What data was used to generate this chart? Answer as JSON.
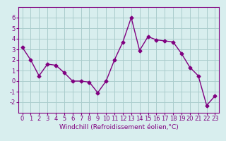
{
  "x": [
    0,
    1,
    2,
    3,
    4,
    5,
    6,
    7,
    8,
    9,
    10,
    11,
    12,
    13,
    14,
    15,
    16,
    17,
    18,
    19,
    20,
    21,
    22,
    23
  ],
  "y": [
    3.2,
    2.0,
    0.5,
    1.6,
    1.5,
    0.8,
    0.0,
    0.0,
    -0.1,
    -1.1,
    0.0,
    2.0,
    3.7,
    6.0,
    2.9,
    4.2,
    3.9,
    3.8,
    3.7,
    2.6,
    1.3,
    0.5,
    -2.3,
    -1.4
  ],
  "xlim": [
    -0.5,
    23.5
  ],
  "ylim": [
    -3,
    7
  ],
  "yticks": [
    -2,
    -1,
    0,
    1,
    2,
    3,
    4,
    5,
    6
  ],
  "xticks": [
    0,
    1,
    2,
    3,
    4,
    5,
    6,
    7,
    8,
    9,
    10,
    11,
    12,
    13,
    14,
    15,
    16,
    17,
    18,
    19,
    20,
    21,
    22,
    23
  ],
  "line_color": "#800080",
  "marker": "D",
  "marker_size": 2.5,
  "line_width": 1.0,
  "bg_color": "#d8eeee",
  "grid_color": "#aacccc",
  "xlabel": "Windchill (Refroidissement éolien,°C)",
  "xlabel_fontsize": 6.5,
  "tick_fontsize": 6.0
}
